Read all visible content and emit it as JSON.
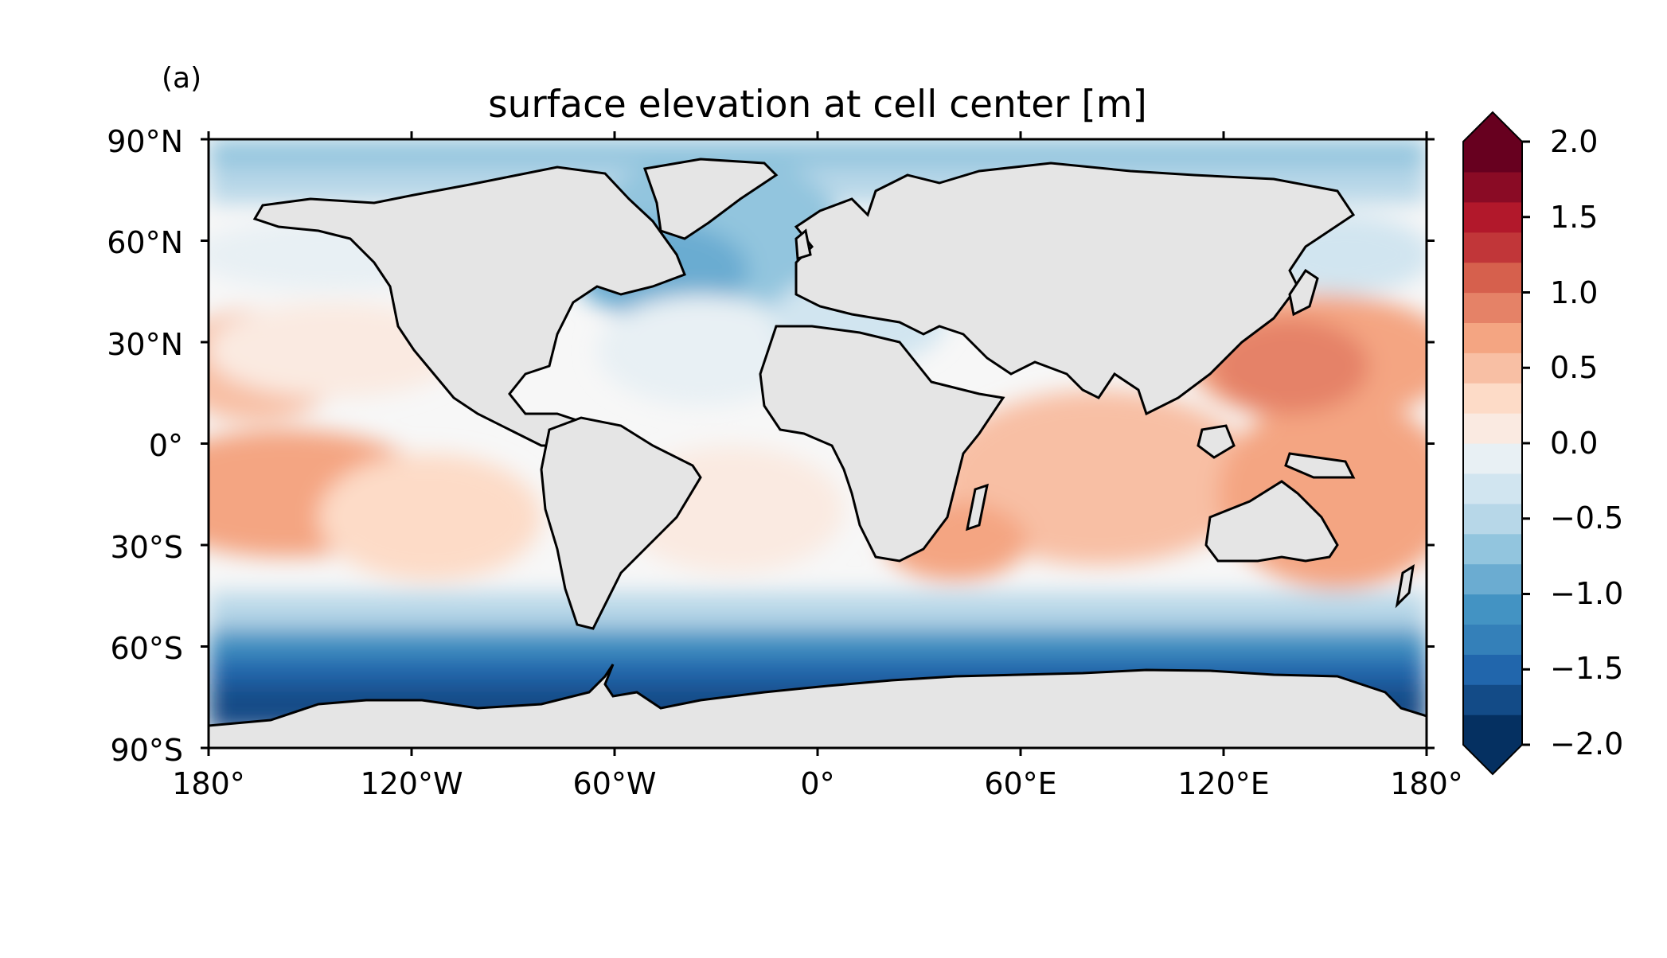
{
  "panel_label": "(a)",
  "title": "surface elevation at cell center [m]",
  "map": {
    "projection": "PlateCarree",
    "lon_range": [
      -180,
      180
    ],
    "lat_range": [
      -90,
      90
    ],
    "land_color": "#e5e5e5",
    "coastline_color": "#000000",
    "field": "surface elevation at cell center",
    "units": "m"
  },
  "axes": {
    "lat_ticks": [
      "90°N",
      "60°N",
      "30°N",
      "0°",
      "30°S",
      "60°S",
      "90°S"
    ],
    "lon_ticks": [
      "180°",
      "120°W",
      "60°W",
      "0°",
      "60°E",
      "120°E",
      "180°"
    ]
  },
  "colorbar": {
    "cmap": "RdBu_r",
    "min": -2.0,
    "max": 2.0,
    "levels": 20,
    "extend": "both",
    "tick_labels": [
      "2.0",
      "1.5",
      "1.0",
      "0.5",
      "0.0",
      "−0.5",
      "−1.0",
      "−1.5",
      "−2.0"
    ],
    "colors": [
      "#053061",
      "#134b87",
      "#2166ac",
      "#3480b9",
      "#4393c3",
      "#6bacd1",
      "#92c5de",
      "#b7d7e8",
      "#d1e5f0",
      "#e8f0f4",
      "#f7f7f7",
      "#faeae1",
      "#fddbc7",
      "#f8bfa4",
      "#f4a582",
      "#e58267",
      "#d6604d",
      "#c13639",
      "#b2182b",
      "#8a0b25",
      "#67001f"
    ]
  }
}
